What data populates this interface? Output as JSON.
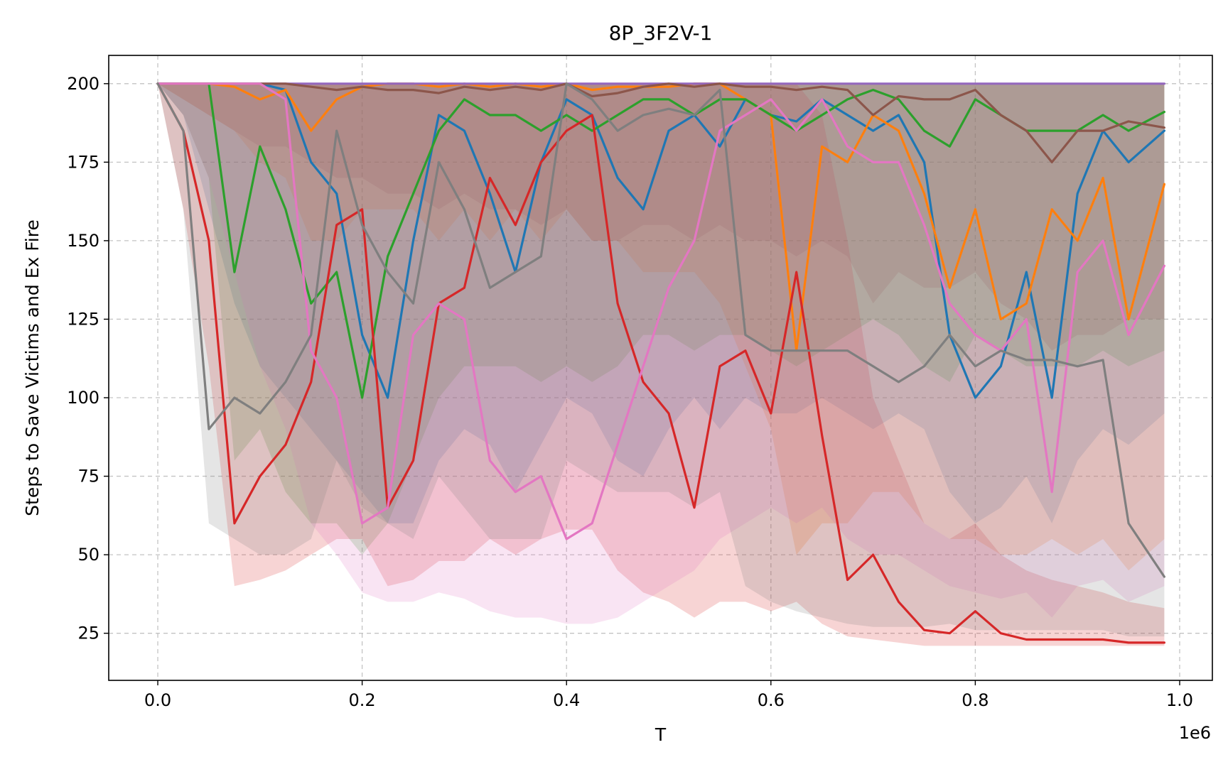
{
  "chart_data": {
    "type": "line",
    "title": "8P_3F2V-1",
    "xlabel": "T",
    "ylabel": "Steps to Save Victims and Ex Fire",
    "x_offset_label": "1e6",
    "xlim": [
      -0.048,
      1.032
    ],
    "ylim": [
      10,
      209
    ],
    "x_ticks": [
      0.0,
      0.2,
      0.4,
      0.6,
      0.8,
      1.0
    ],
    "x_tick_labels": [
      "0.0",
      "0.2",
      "0.4",
      "0.6",
      "0.8",
      "1.0"
    ],
    "y_ticks": [
      25,
      50,
      75,
      100,
      125,
      150,
      175,
      200
    ],
    "y_tick_labels": [
      "25",
      "50",
      "75",
      "100",
      "125",
      "150",
      "175",
      "200"
    ],
    "grid": true,
    "x": [
      0.0,
      0.025,
      0.05,
      0.075,
      0.1,
      0.125,
      0.15,
      0.175,
      0.2,
      0.225,
      0.25,
      0.275,
      0.3,
      0.325,
      0.35,
      0.375,
      0.4,
      0.425,
      0.45,
      0.475,
      0.5,
      0.525,
      0.55,
      0.575,
      0.6,
      0.625,
      0.65,
      0.675,
      0.7,
      0.725,
      0.75,
      0.775,
      0.8,
      0.825,
      0.85,
      0.875,
      0.9,
      0.925,
      0.95,
      0.985
    ],
    "series": [
      {
        "color": "#1f77b4",
        "values": [
          200,
          200,
          200,
          200,
          200,
          198,
          175,
          165,
          120,
          100,
          150,
          190,
          185,
          165,
          140,
          175,
          195,
          190,
          170,
          160,
          185,
          190,
          180,
          195,
          190,
          188,
          195,
          190,
          185,
          190,
          175,
          120,
          100,
          110,
          140,
          100,
          165,
          185,
          175,
          185
        ],
        "lower": [
          200,
          190,
          160,
          130,
          110,
          100,
          90,
          80,
          70,
          60,
          60,
          80,
          90,
          85,
          70,
          85,
          100,
          95,
          80,
          75,
          90,
          100,
          90,
          100,
          95,
          95,
          100,
          95,
          90,
          95,
          90,
          70,
          60,
          65,
          75,
          60,
          80,
          90,
          85,
          95
        ],
        "upper": [
          200,
          200,
          200,
          200,
          200,
          200,
          200,
          200,
          200,
          200,
          200,
          200,
          200,
          200,
          200,
          200,
          200,
          200,
          200,
          200,
          200,
          200,
          200,
          200,
          200,
          200,
          200,
          200,
          200,
          200,
          200,
          200,
          200,
          200,
          200,
          200,
          200,
          200,
          200,
          200
        ]
      },
      {
        "color": "#ff7f0e",
        "values": [
          200,
          200,
          200,
          199,
          195,
          198,
          185,
          195,
          199,
          200,
          200,
          199,
          200,
          199,
          200,
          199,
          200,
          198,
          199,
          199,
          199,
          200,
          200,
          195,
          190,
          115,
          180,
          175,
          190,
          185,
          165,
          135,
          160,
          125,
          130,
          160,
          150,
          170,
          125,
          168
        ],
        "lower": [
          200,
          195,
          190,
          185,
          175,
          170,
          150,
          150,
          160,
          160,
          160,
          150,
          160,
          150,
          160,
          150,
          160,
          150,
          150,
          140,
          140,
          140,
          130,
          110,
          90,
          50,
          60,
          60,
          70,
          70,
          60,
          55,
          55,
          50,
          50,
          55,
          50,
          55,
          45,
          55
        ],
        "upper": [
          200,
          200,
          200,
          200,
          200,
          200,
          200,
          200,
          200,
          200,
          200,
          200,
          200,
          200,
          200,
          200,
          200,
          200,
          200,
          200,
          200,
          200,
          200,
          200,
          200,
          200,
          200,
          200,
          200,
          200,
          200,
          200,
          200,
          200,
          200,
          200,
          200,
          200,
          200,
          200
        ]
      },
      {
        "color": "#2ca02c",
        "values": [
          200,
          200,
          200,
          140,
          180,
          160,
          130,
          140,
          100,
          145,
          165,
          185,
          195,
          190,
          190,
          185,
          190,
          185,
          190,
          195,
          195,
          190,
          195,
          195,
          190,
          185,
          190,
          195,
          198,
          195,
          185,
          180,
          195,
          190,
          185,
          185,
          185,
          190,
          185,
          191
        ],
        "lower": [
          200,
          190,
          170,
          80,
          90,
          70,
          60,
          60,
          50,
          60,
          80,
          100,
          110,
          110,
          110,
          105,
          110,
          105,
          110,
          120,
          120,
          115,
          120,
          120,
          115,
          110,
          115,
          120,
          125,
          120,
          110,
          105,
          120,
          115,
          110,
          110,
          110,
          115,
          110,
          115
        ],
        "upper": [
          200,
          200,
          200,
          200,
          200,
          200,
          200,
          200,
          200,
          200,
          200,
          200,
          200,
          200,
          200,
          200,
          200,
          200,
          200,
          200,
          200,
          200,
          200,
          200,
          200,
          200,
          200,
          200,
          200,
          200,
          200,
          200,
          200,
          200,
          200,
          200,
          200,
          200,
          200,
          200
        ]
      },
      {
        "color": "#d62728",
        "values": [
          200,
          185,
          150,
          60,
          75,
          85,
          105,
          155,
          160,
          65,
          80,
          130,
          135,
          170,
          155,
          175,
          185,
          190,
          130,
          105,
          95,
          65,
          110,
          115,
          95,
          140,
          88,
          42,
          50,
          35,
          26,
          25,
          32,
          25,
          23,
          23,
          23,
          23,
          22,
          22
        ],
        "lower": [
          200,
          160,
          110,
          40,
          42,
          45,
          50,
          55,
          55,
          40,
          42,
          48,
          48,
          55,
          50,
          55,
          58,
          58,
          45,
          38,
          35,
          30,
          35,
          35,
          32,
          35,
          28,
          24,
          23,
          22,
          21,
          21,
          21,
          21,
          21,
          21,
          21,
          21,
          21,
          21
        ],
        "upper": [
          200,
          200,
          200,
          200,
          200,
          200,
          200,
          200,
          200,
          200,
          200,
          200,
          200,
          200,
          200,
          200,
          200,
          200,
          200,
          200,
          200,
          200,
          200,
          200,
          200,
          200,
          190,
          150,
          100,
          80,
          60,
          55,
          60,
          50,
          45,
          42,
          40,
          38,
          35,
          33
        ]
      },
      {
        "color": "#9467bd",
        "values": [
          200,
          200,
          200,
          200,
          200,
          200,
          200,
          200,
          200,
          200,
          200,
          200,
          200,
          200,
          200,
          200,
          200,
          200,
          200,
          200,
          200,
          200,
          200,
          200,
          200,
          200,
          200,
          200,
          200,
          200,
          200,
          200,
          200,
          200,
          200,
          200,
          200,
          200,
          200,
          200
        ],
        "lower": [
          200,
          200,
          200,
          200,
          200,
          200,
          200,
          200,
          200,
          200,
          200,
          200,
          200,
          200,
          200,
          200,
          200,
          200,
          200,
          200,
          200,
          200,
          200,
          200,
          200,
          200,
          200,
          200,
          200,
          200,
          200,
          200,
          200,
          200,
          200,
          200,
          200,
          200,
          200,
          200
        ],
        "upper": [
          200,
          200,
          200,
          200,
          200,
          200,
          200,
          200,
          200,
          200,
          200,
          200,
          200,
          200,
          200,
          200,
          200,
          200,
          200,
          200,
          200,
          200,
          200,
          200,
          200,
          200,
          200,
          200,
          200,
          200,
          200,
          200,
          200,
          200,
          200,
          200,
          200,
          200,
          200,
          200
        ]
      },
      {
        "color": "#8c564b",
        "values": [
          200,
          200,
          200,
          200,
          200,
          200,
          199,
          198,
          199,
          198,
          198,
          197,
          199,
          198,
          199,
          198,
          200,
          196,
          197,
          199,
          200,
          199,
          200,
          199,
          199,
          198,
          199,
          198,
          190,
          196,
          195,
          195,
          198,
          190,
          185,
          175,
          185,
          185,
          188,
          186
        ],
        "lower": [
          200,
          195,
          190,
          185,
          180,
          180,
          175,
          170,
          170,
          165,
          165,
          160,
          165,
          160,
          160,
          155,
          160,
          150,
          150,
          155,
          155,
          150,
          155,
          150,
          150,
          145,
          150,
          145,
          130,
          140,
          135,
          135,
          140,
          130,
          125,
          115,
          120,
          120,
          125,
          125
        ],
        "upper": [
          200,
          200,
          200,
          200,
          200,
          200,
          200,
          200,
          200,
          200,
          200,
          200,
          200,
          200,
          200,
          200,
          200,
          200,
          200,
          200,
          200,
          200,
          200,
          200,
          200,
          200,
          200,
          200,
          200,
          200,
          200,
          200,
          200,
          200,
          200,
          200,
          200,
          200,
          200,
          200
        ]
      },
      {
        "color": "#e377c2",
        "values": [
          200,
          200,
          200,
          200,
          200,
          195,
          115,
          100,
          60,
          65,
          120,
          130,
          125,
          80,
          70,
          75,
          55,
          60,
          85,
          110,
          135,
          150,
          185,
          190,
          195,
          185,
          195,
          180,
          175,
          175,
          155,
          130,
          120,
          115,
          125,
          70,
          140,
          150,
          120,
          142
        ],
        "lower": [
          200,
          190,
          170,
          140,
          110,
          90,
          60,
          50,
          38,
          35,
          35,
          38,
          36,
          32,
          30,
          30,
          28,
          28,
          30,
          35,
          40,
          45,
          55,
          60,
          65,
          60,
          65,
          55,
          50,
          50,
          45,
          40,
          38,
          36,
          38,
          30,
          40,
          42,
          35,
          40
        ],
        "upper": [
          200,
          200,
          200,
          200,
          200,
          200,
          200,
          200,
          200,
          200,
          200,
          200,
          200,
          200,
          200,
          200,
          200,
          200,
          200,
          200,
          200,
          200,
          200,
          200,
          200,
          200,
          200,
          200,
          200,
          200,
          200,
          200,
          200,
          200,
          200,
          200,
          200,
          200,
          200,
          200
        ]
      },
      {
        "color": "#7f7f7f",
        "values": [
          200,
          185,
          90,
          100,
          95,
          105,
          120,
          185,
          155,
          140,
          130,
          175,
          160,
          135,
          140,
          145,
          200,
          195,
          185,
          190,
          192,
          190,
          198,
          120,
          115,
          115,
          115,
          115,
          110,
          105,
          110,
          120,
          110,
          115,
          112,
          112,
          110,
          112,
          60,
          43
        ],
        "lower": [
          200,
          160,
          60,
          55,
          50,
          50,
          55,
          80,
          65,
          60,
          55,
          75,
          65,
          55,
          55,
          55,
          80,
          75,
          70,
          70,
          70,
          65,
          70,
          40,
          35,
          32,
          30,
          28,
          27,
          27,
          27,
          28,
          26,
          26,
          26,
          26,
          26,
          26,
          24,
          24
        ],
        "upper": [
          200,
          200,
          200,
          200,
          200,
          200,
          200,
          200,
          200,
          200,
          200,
          200,
          200,
          200,
          200,
          200,
          200,
          200,
          200,
          200,
          200,
          200,
          200,
          200,
          200,
          200,
          200,
          200,
          200,
          200,
          200,
          200,
          200,
          200,
          200,
          200,
          200,
          200,
          200,
          200
        ]
      }
    ]
  }
}
